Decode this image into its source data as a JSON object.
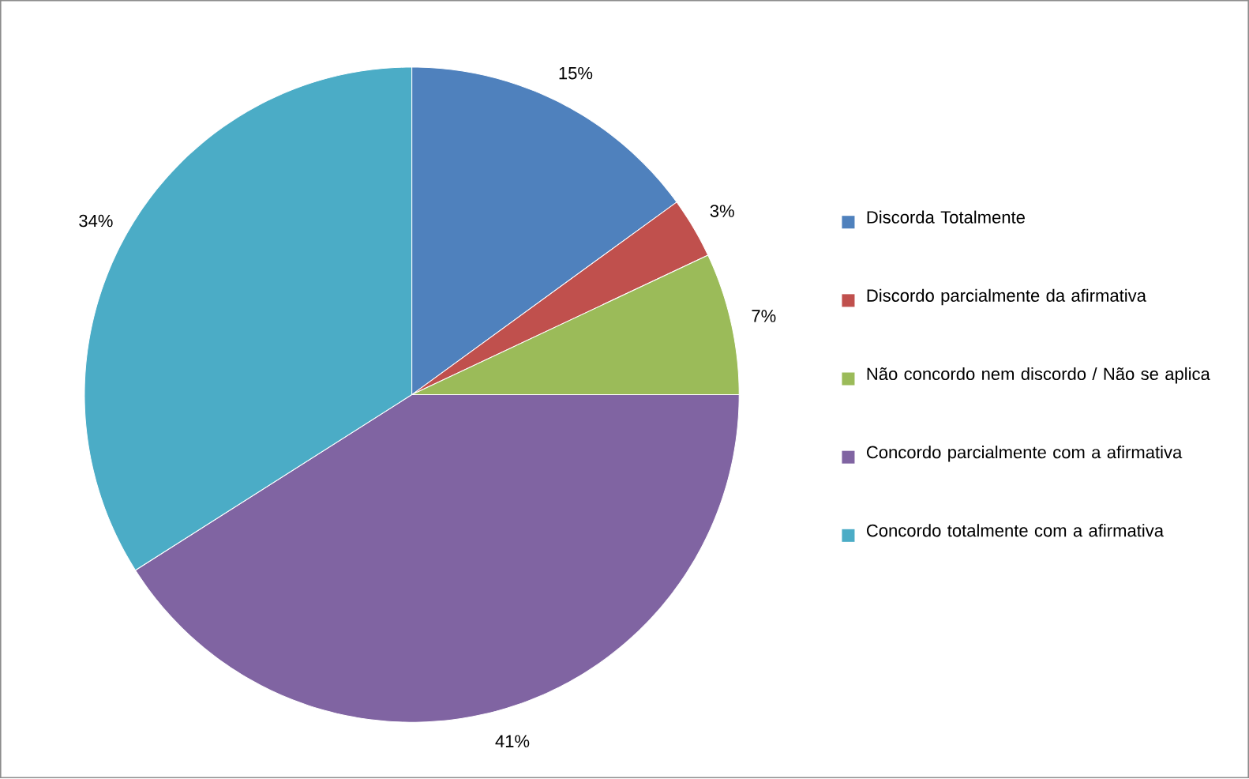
{
  "chart_data": {
    "type": "pie",
    "categories": [
      "Discorda Totalmente",
      "Discordo parcialmente da afirmativa",
      "Não concordo nem discordo / Não se aplica",
      "Concordo parcialmente com a afirmativa",
      "Concordo totalmente com a afirmativa"
    ],
    "values": [
      15,
      3,
      7,
      41,
      34
    ],
    "colors": [
      "#4f81bd",
      "#c0504d",
      "#9bbb59",
      "#8064a2",
      "#4bacc6"
    ],
    "value_labels": [
      "15%",
      "3%",
      "7%",
      "41%",
      "34%"
    ],
    "legend": "right"
  }
}
